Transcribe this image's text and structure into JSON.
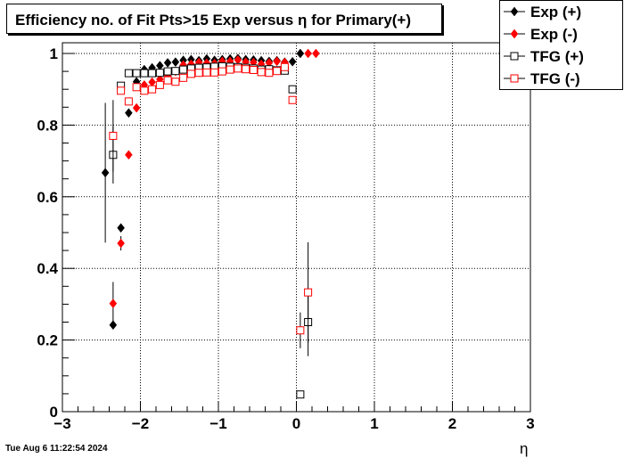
{
  "chart_data": {
    "type": "scatter",
    "title": "Efficiency no. of Fit Pts>15 Exp versus η for Primary(+)",
    "xlabel": "η",
    "ylabel": "",
    "xlim": [
      -3,
      3
    ],
    "ylim": [
      0,
      1.02
    ],
    "xticks": [
      "−3",
      "−2",
      "−1",
      "0",
      "1",
      "2",
      "3"
    ],
    "yticks": [
      "0",
      "0.2",
      "0.4",
      "0.6",
      "0.8",
      "1"
    ],
    "grid": true,
    "legend_position": "top-right",
    "series": [
      {
        "name": "Exp (+)",
        "color": "#000000",
        "marker": "filled-diamond",
        "points": [
          {
            "x": -2.45,
            "y": 0.667,
            "err": 0.195
          },
          {
            "x": -2.35,
            "y": 0.242,
            "err": 0
          },
          {
            "x": -2.25,
            "y": 0.513,
            "err": 0
          },
          {
            "x": -2.15,
            "y": 0.834,
            "err": 0
          },
          {
            "x": -2.05,
            "y": 0.921,
            "err": 0
          },
          {
            "x": -1.95,
            "y": 0.955,
            "err": 0
          },
          {
            "x": -1.85,
            "y": 0.96,
            "err": 0
          },
          {
            "x": -1.75,
            "y": 0.966,
            "err": 0
          },
          {
            "x": -1.65,
            "y": 0.974,
            "err": 0
          },
          {
            "x": -1.55,
            "y": 0.976,
            "err": 0
          },
          {
            "x": -1.45,
            "y": 0.981,
            "err": 0
          },
          {
            "x": -1.35,
            "y": 0.983,
            "err": 0
          },
          {
            "x": -1.25,
            "y": 0.98,
            "err": 0
          },
          {
            "x": -1.15,
            "y": 0.985,
            "err": 0
          },
          {
            "x": -1.05,
            "y": 0.981,
            "err": 0
          },
          {
            "x": -0.95,
            "y": 0.983,
            "err": 0
          },
          {
            "x": -0.85,
            "y": 0.985,
            "err": 0
          },
          {
            "x": -0.75,
            "y": 0.986,
            "err": 0
          },
          {
            "x": -0.65,
            "y": 0.983,
            "err": 0
          },
          {
            "x": -0.55,
            "y": 0.982,
            "err": 0
          },
          {
            "x": -0.45,
            "y": 0.98,
            "err": 0
          },
          {
            "x": -0.35,
            "y": 0.978,
            "err": 0
          },
          {
            "x": -0.25,
            "y": 0.98,
            "err": 0
          },
          {
            "x": -0.15,
            "y": 0.976,
            "err": 0
          },
          {
            "x": -0.05,
            "y": 0.977,
            "err": 0
          },
          {
            "x": 0.05,
            "y": 1.0,
            "err": 0
          }
        ]
      },
      {
        "name": "Exp (-)",
        "color": "#ff0000",
        "marker": "filled-diamond",
        "points": [
          {
            "x": -2.35,
            "y": 0.302,
            "err": 0.06
          },
          {
            "x": -2.25,
            "y": 0.47,
            "err": 0.02
          },
          {
            "x": -2.15,
            "y": 0.717,
            "err": 0
          },
          {
            "x": -2.05,
            "y": 0.848,
            "err": 0
          },
          {
            "x": -1.95,
            "y": 0.912,
            "err": 0
          },
          {
            "x": -1.85,
            "y": 0.92,
            "err": 0
          },
          {
            "x": -1.75,
            "y": 0.928,
            "err": 0
          },
          {
            "x": -1.65,
            "y": 0.937,
            "err": 0
          },
          {
            "x": -1.55,
            "y": 0.95,
            "err": 0
          },
          {
            "x": -1.45,
            "y": 0.968,
            "err": 0
          },
          {
            "x": -1.35,
            "y": 0.97,
            "err": 0
          },
          {
            "x": -1.25,
            "y": 0.975,
            "err": 0
          },
          {
            "x": -1.15,
            "y": 0.973,
            "err": 0
          },
          {
            "x": -1.05,
            "y": 0.972,
            "err": 0
          },
          {
            "x": -0.95,
            "y": 0.978,
            "err": 0
          },
          {
            "x": -0.85,
            "y": 0.978,
            "err": 0
          },
          {
            "x": -0.75,
            "y": 0.982,
            "err": 0
          },
          {
            "x": -0.65,
            "y": 0.976,
            "err": 0
          },
          {
            "x": -0.55,
            "y": 0.975,
            "err": 0
          },
          {
            "x": -0.45,
            "y": 0.97,
            "err": 0
          },
          {
            "x": -0.35,
            "y": 0.974,
            "err": 0
          },
          {
            "x": -0.25,
            "y": 0.978,
            "err": 0
          },
          {
            "x": -0.15,
            "y": 0.975,
            "err": 0
          },
          {
            "x": 0.15,
            "y": 1.0,
            "err": 0
          },
          {
            "x": 0.25,
            "y": 1.0,
            "err": 0
          }
        ]
      },
      {
        "name": "TFG (+)",
        "color": "#000000",
        "marker": "open-square",
        "points": [
          {
            "x": -2.35,
            "y": 0.717,
            "err": 0.08
          },
          {
            "x": -2.25,
            "y": 0.91,
            "err": 0
          },
          {
            "x": -2.15,
            "y": 0.945,
            "err": 0
          },
          {
            "x": -2.05,
            "y": 0.945,
            "err": 0
          },
          {
            "x": -1.95,
            "y": 0.945,
            "err": 0
          },
          {
            "x": -1.85,
            "y": 0.945,
            "err": 0
          },
          {
            "x": -1.75,
            "y": 0.946,
            "err": 0
          },
          {
            "x": -1.65,
            "y": 0.95,
            "err": 0
          },
          {
            "x": -1.55,
            "y": 0.951,
            "err": 0
          },
          {
            "x": -1.45,
            "y": 0.955,
            "err": 0
          },
          {
            "x": -1.35,
            "y": 0.958,
            "err": 0
          },
          {
            "x": -1.25,
            "y": 0.96,
            "err": 0
          },
          {
            "x": -1.15,
            "y": 0.961,
            "err": 0
          },
          {
            "x": -1.05,
            "y": 0.963,
            "err": 0
          },
          {
            "x": -0.95,
            "y": 0.964,
            "err": 0
          },
          {
            "x": -0.85,
            "y": 0.963,
            "err": 0
          },
          {
            "x": -0.75,
            "y": 0.962,
            "err": 0
          },
          {
            "x": -0.65,
            "y": 0.96,
            "err": 0
          },
          {
            "x": -0.55,
            "y": 0.958,
            "err": 0
          },
          {
            "x": -0.45,
            "y": 0.955,
            "err": 0
          },
          {
            "x": -0.35,
            "y": 0.956,
            "err": 0
          },
          {
            "x": -0.25,
            "y": 0.953,
            "err": 0
          },
          {
            "x": -0.15,
            "y": 0.952,
            "err": 0
          },
          {
            "x": -0.05,
            "y": 0.9,
            "err": 0
          },
          {
            "x": 0.05,
            "y": 0.048,
            "err": 0
          },
          {
            "x": 0.15,
            "y": 0.25,
            "err": 0.095
          }
        ]
      },
      {
        "name": "TFG (-)",
        "color": "#ff0000",
        "marker": "open-square",
        "points": [
          {
            "x": -2.35,
            "y": 0.77,
            "err": 0.1
          },
          {
            "x": -2.25,
            "y": 0.896,
            "err": 0
          },
          {
            "x": -2.15,
            "y": 0.866,
            "err": 0
          },
          {
            "x": -2.05,
            "y": 0.906,
            "err": 0
          },
          {
            "x": -1.95,
            "y": 0.896,
            "err": 0
          },
          {
            "x": -1.85,
            "y": 0.9,
            "err": 0
          },
          {
            "x": -1.75,
            "y": 0.912,
            "err": 0
          },
          {
            "x": -1.65,
            "y": 0.925,
            "err": 0
          },
          {
            "x": -1.55,
            "y": 0.921,
            "err": 0
          },
          {
            "x": -1.45,
            "y": 0.932,
            "err": 0
          },
          {
            "x": -1.35,
            "y": 0.943,
            "err": 0
          },
          {
            "x": -1.25,
            "y": 0.946,
            "err": 0
          },
          {
            "x": -1.15,
            "y": 0.947,
            "err": 0
          },
          {
            "x": -1.05,
            "y": 0.947,
            "err": 0
          },
          {
            "x": -0.95,
            "y": 0.95,
            "err": 0
          },
          {
            "x": -0.85,
            "y": 0.955,
            "err": 0
          },
          {
            "x": -0.75,
            "y": 0.958,
            "err": 0
          },
          {
            "x": -0.65,
            "y": 0.956,
            "err": 0
          },
          {
            "x": -0.55,
            "y": 0.954,
            "err": 0
          },
          {
            "x": -0.45,
            "y": 0.948,
            "err": 0
          },
          {
            "x": -0.35,
            "y": 0.946,
            "err": 0
          },
          {
            "x": -0.25,
            "y": 0.951,
            "err": 0
          },
          {
            "x": -0.15,
            "y": 0.962,
            "err": 0
          },
          {
            "x": -0.05,
            "y": 0.87,
            "err": 0
          },
          {
            "x": 0.05,
            "y": 0.227,
            "err": 0.05
          },
          {
            "x": 0.15,
            "y": 0.333,
            "err": 0.14
          }
        ]
      }
    ]
  },
  "timestamp": "Tue Aug  6 11:22:54 2024"
}
